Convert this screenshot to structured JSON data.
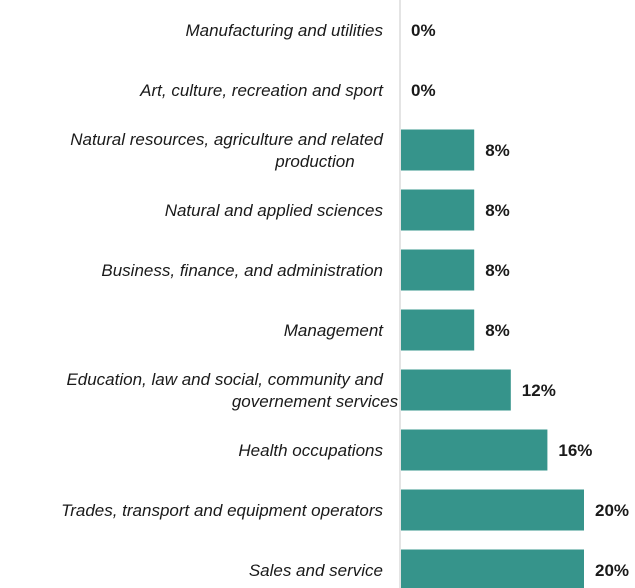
{
  "chart_data": {
    "type": "bar",
    "orientation": "horizontal",
    "categories": [
      [
        "Manufacturing and utilities"
      ],
      [
        "Art, culture, recreation and sport"
      ],
      [
        "Natural resources, agriculture and related",
        "production"
      ],
      [
        "Natural and applied sciences"
      ],
      [
        "Business, finance, and administration"
      ],
      [
        "Management"
      ],
      [
        "Education, law and social, community and",
        "governement services"
      ],
      [
        "Health occupations"
      ],
      [
        "Trades, transport and equipment operators"
      ],
      [
        "Sales and service"
      ]
    ],
    "values": [
      0,
      0,
      8,
      8,
      8,
      8,
      12,
      16,
      20,
      20
    ],
    "value_labels": [
      "0%",
      "0%",
      "8%",
      "8%",
      "8%",
      "8%",
      "12%",
      "16%",
      "20%",
      "20%"
    ],
    "value_unit": "%",
    "xlim": [
      0,
      20
    ],
    "bar_color": "#36948b",
    "grid": false,
    "legend": "none"
  }
}
